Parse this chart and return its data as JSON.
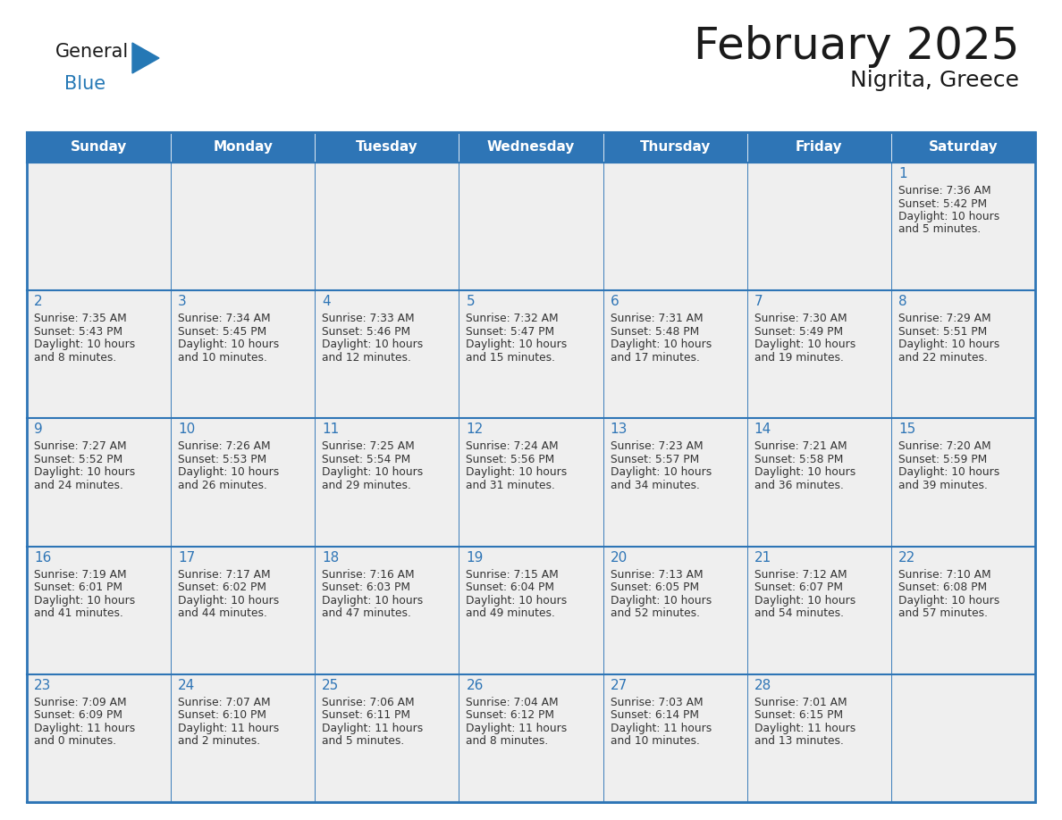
{
  "title": "February 2025",
  "subtitle": "Nigrita, Greece",
  "days_of_week": [
    "Sunday",
    "Monday",
    "Tuesday",
    "Wednesday",
    "Thursday",
    "Friday",
    "Saturday"
  ],
  "header_bg": "#2E75B6",
  "header_text": "#FFFFFF",
  "cell_bg": "#EFEFEF",
  "border_color": "#2E75B6",
  "text_color": "#333333",
  "day_number_color": "#2E75B6",
  "title_color": "#1A1A1A",
  "logo_general_color": "#1A1A1A",
  "logo_blue_color": "#2578B5",
  "calendar_data": [
    [
      null,
      null,
      null,
      null,
      null,
      null,
      {
        "day": "1",
        "sunrise": "7:36 AM",
        "sunset": "5:42 PM",
        "daylight_line1": "Daylight: 10 hours",
        "daylight_line2": "and 5 minutes."
      }
    ],
    [
      {
        "day": "2",
        "sunrise": "7:35 AM",
        "sunset": "5:43 PM",
        "daylight_line1": "Daylight: 10 hours",
        "daylight_line2": "and 8 minutes."
      },
      {
        "day": "3",
        "sunrise": "7:34 AM",
        "sunset": "5:45 PM",
        "daylight_line1": "Daylight: 10 hours",
        "daylight_line2": "and 10 minutes."
      },
      {
        "day": "4",
        "sunrise": "7:33 AM",
        "sunset": "5:46 PM",
        "daylight_line1": "Daylight: 10 hours",
        "daylight_line2": "and 12 minutes."
      },
      {
        "day": "5",
        "sunrise": "7:32 AM",
        "sunset": "5:47 PM",
        "daylight_line1": "Daylight: 10 hours",
        "daylight_line2": "and 15 minutes."
      },
      {
        "day": "6",
        "sunrise": "7:31 AM",
        "sunset": "5:48 PM",
        "daylight_line1": "Daylight: 10 hours",
        "daylight_line2": "and 17 minutes."
      },
      {
        "day": "7",
        "sunrise": "7:30 AM",
        "sunset": "5:49 PM",
        "daylight_line1": "Daylight: 10 hours",
        "daylight_line2": "and 19 minutes."
      },
      {
        "day": "8",
        "sunrise": "7:29 AM",
        "sunset": "5:51 PM",
        "daylight_line1": "Daylight: 10 hours",
        "daylight_line2": "and 22 minutes."
      }
    ],
    [
      {
        "day": "9",
        "sunrise": "7:27 AM",
        "sunset": "5:52 PM",
        "daylight_line1": "Daylight: 10 hours",
        "daylight_line2": "and 24 minutes."
      },
      {
        "day": "10",
        "sunrise": "7:26 AM",
        "sunset": "5:53 PM",
        "daylight_line1": "Daylight: 10 hours",
        "daylight_line2": "and 26 minutes."
      },
      {
        "day": "11",
        "sunrise": "7:25 AM",
        "sunset": "5:54 PM",
        "daylight_line1": "Daylight: 10 hours",
        "daylight_line2": "and 29 minutes."
      },
      {
        "day": "12",
        "sunrise": "7:24 AM",
        "sunset": "5:56 PM",
        "daylight_line1": "Daylight: 10 hours",
        "daylight_line2": "and 31 minutes."
      },
      {
        "day": "13",
        "sunrise": "7:23 AM",
        "sunset": "5:57 PM",
        "daylight_line1": "Daylight: 10 hours",
        "daylight_line2": "and 34 minutes."
      },
      {
        "day": "14",
        "sunrise": "7:21 AM",
        "sunset": "5:58 PM",
        "daylight_line1": "Daylight: 10 hours",
        "daylight_line2": "and 36 minutes."
      },
      {
        "day": "15",
        "sunrise": "7:20 AM",
        "sunset": "5:59 PM",
        "daylight_line1": "Daylight: 10 hours",
        "daylight_line2": "and 39 minutes."
      }
    ],
    [
      {
        "day": "16",
        "sunrise": "7:19 AM",
        "sunset": "6:01 PM",
        "daylight_line1": "Daylight: 10 hours",
        "daylight_line2": "and 41 minutes."
      },
      {
        "day": "17",
        "sunrise": "7:17 AM",
        "sunset": "6:02 PM",
        "daylight_line1": "Daylight: 10 hours",
        "daylight_line2": "and 44 minutes."
      },
      {
        "day": "18",
        "sunrise": "7:16 AM",
        "sunset": "6:03 PM",
        "daylight_line1": "Daylight: 10 hours",
        "daylight_line2": "and 47 minutes."
      },
      {
        "day": "19",
        "sunrise": "7:15 AM",
        "sunset": "6:04 PM",
        "daylight_line1": "Daylight: 10 hours",
        "daylight_line2": "and 49 minutes."
      },
      {
        "day": "20",
        "sunrise": "7:13 AM",
        "sunset": "6:05 PM",
        "daylight_line1": "Daylight: 10 hours",
        "daylight_line2": "and 52 minutes."
      },
      {
        "day": "21",
        "sunrise": "7:12 AM",
        "sunset": "6:07 PM",
        "daylight_line1": "Daylight: 10 hours",
        "daylight_line2": "and 54 minutes."
      },
      {
        "day": "22",
        "sunrise": "7:10 AM",
        "sunset": "6:08 PM",
        "daylight_line1": "Daylight: 10 hours",
        "daylight_line2": "and 57 minutes."
      }
    ],
    [
      {
        "day": "23",
        "sunrise": "7:09 AM",
        "sunset": "6:09 PM",
        "daylight_line1": "Daylight: 11 hours",
        "daylight_line2": "and 0 minutes."
      },
      {
        "day": "24",
        "sunrise": "7:07 AM",
        "sunset": "6:10 PM",
        "daylight_line1": "Daylight: 11 hours",
        "daylight_line2": "and 2 minutes."
      },
      {
        "day": "25",
        "sunrise": "7:06 AM",
        "sunset": "6:11 PM",
        "daylight_line1": "Daylight: 11 hours",
        "daylight_line2": "and 5 minutes."
      },
      {
        "day": "26",
        "sunrise": "7:04 AM",
        "sunset": "6:12 PM",
        "daylight_line1": "Daylight: 11 hours",
        "daylight_line2": "and 8 minutes."
      },
      {
        "day": "27",
        "sunrise": "7:03 AM",
        "sunset": "6:14 PM",
        "daylight_line1": "Daylight: 11 hours",
        "daylight_line2": "and 10 minutes."
      },
      {
        "day": "28",
        "sunrise": "7:01 AM",
        "sunset": "6:15 PM",
        "daylight_line1": "Daylight: 11 hours",
        "daylight_line2": "and 13 minutes."
      },
      null
    ]
  ]
}
